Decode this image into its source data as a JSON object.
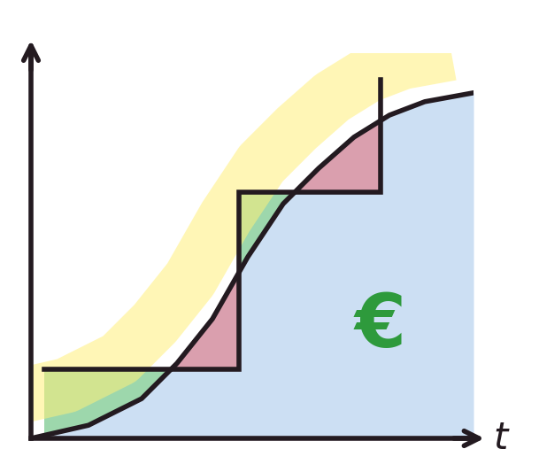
{
  "chart_data": {
    "type": "line",
    "x_label": "t",
    "annotation": "€",
    "xlim": [
      0,
      10
    ],
    "ylim": [
      0,
      10
    ],
    "tick_labels": false,
    "grid": false,
    "series": [
      {
        "type": "line",
        "color": "#231a20",
        "line_style": "solid",
        "x": [
          0,
          1.3,
          2.5,
          3.3,
          4.1,
          4.9,
          5.7,
          6.5,
          7.3,
          8.1,
          8.9,
          10
        ],
        "values": [
          0,
          0.34,
          1.03,
          1.95,
          3.1,
          4.71,
          6.09,
          7.01,
          7.82,
          8.39,
          8.74,
          8.97
        ]
      },
      {
        "type": "step",
        "color": "#231a20",
        "line_style": "solid",
        "x": [
          0.3,
          4.7,
          7.9
        ],
        "values": [
          1.8,
          6.4,
          9.3
        ]
      }
    ]
  }
}
